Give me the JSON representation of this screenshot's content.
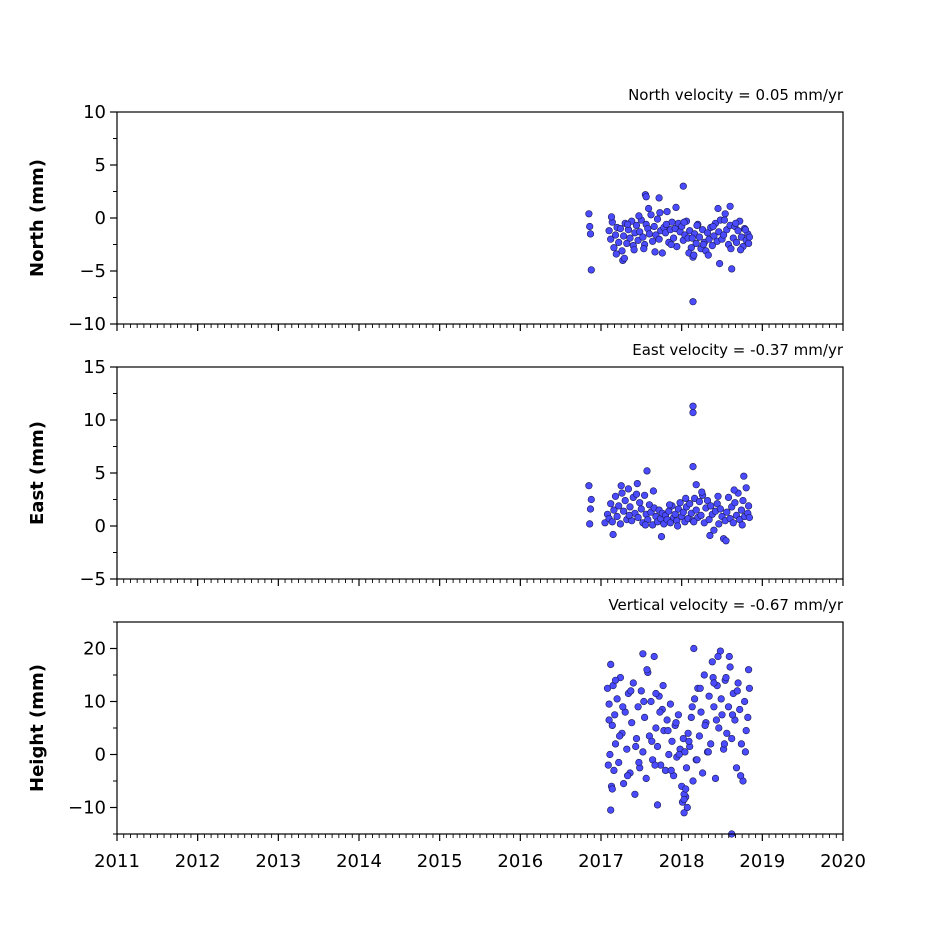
{
  "chart_data": [
    {
      "type": "scatter",
      "title": "North velocity = 0.05 mm/yr",
      "ylabel": "North (mm)",
      "xlim": [
        2011,
        2020
      ],
      "ylim": [
        -10,
        10
      ],
      "yticks": [
        10,
        5,
        0,
        -5,
        -10
      ],
      "marker_color": "#4a4aff",
      "marker_edge": "#1a1a55",
      "series": [
        {
          "x": [
            2016.85,
            2016.86,
            2016.87,
            2016.88,
            2017.1,
            2017.12,
            2017.14,
            2017.16,
            2017.18,
            2017.2,
            2017.22,
            2017.24,
            2017.26,
            2017.28,
            2017.3,
            2017.32,
            2017.34,
            2017.36,
            2017.38,
            2017.4,
            2017.42,
            2017.44,
            2017.46,
            2017.48,
            2017.5,
            2017.52,
            2017.54,
            2017.56,
            2017.58,
            2017.6,
            2017.62,
            2017.64,
            2017.66,
            2017.68,
            2017.7,
            2017.72,
            2017.74,
            2017.76,
            2017.78,
            2017.8,
            2017.82,
            2017.84,
            2017.86,
            2017.88,
            2017.9,
            2017.92,
            2017.94,
            2017.96,
            2017.98,
            2018.0,
            2018.02,
            2018.04,
            2018.06,
            2018.08,
            2018.1,
            2018.12,
            2018.14,
            2018.16,
            2018.18,
            2018.2,
            2018.22,
            2018.24,
            2018.26,
            2018.28,
            2018.3,
            2018.32,
            2018.34,
            2018.36,
            2018.38,
            2018.4,
            2018.42,
            2018.44,
            2018.46,
            2018.48,
            2018.5,
            2018.52,
            2018.54,
            2018.56,
            2018.58,
            2018.6,
            2018.62,
            2018.64,
            2018.66,
            2018.68,
            2018.7,
            2018.72,
            2018.74,
            2018.76,
            2018.78,
            2018.8,
            2018.82,
            2018.84,
            2017.13,
            2017.19,
            2017.27,
            2017.33,
            2017.41,
            2017.47,
            2017.53,
            2017.59,
            2017.67,
            2017.73,
            2017.81,
            2017.87,
            2017.93,
            2018.03,
            2018.09,
            2018.13,
            2018.19,
            2018.27,
            2018.33,
            2018.39,
            2018.47,
            2018.53,
            2018.61,
            2018.67,
            2018.73,
            2018.79,
            2018.83,
            2017.55,
            2017.56,
            2017.72,
            2018.02,
            2018.14,
            2018.45,
            2018.6,
            2018.15,
            2017.29
          ],
          "y": [
            0.4,
            -0.8,
            -1.5,
            -4.9,
            -1.2,
            -2.0,
            -0.4,
            -2.8,
            -1.6,
            -0.9,
            -2.3,
            -1.0,
            -3.1,
            -1.7,
            -0.5,
            -2.4,
            -1.1,
            -1.9,
            -0.3,
            -2.6,
            -1.4,
            -0.7,
            -2.1,
            -1.3,
            -0.2,
            -1.8,
            -2.5,
            -0.6,
            -1.0,
            -1.5,
            0.3,
            -2.2,
            -0.8,
            -1.6,
            -0.1,
            -2.0,
            -1.2,
            -3.3,
            -0.9,
            -1.4,
            0.6,
            -2.3,
            -1.1,
            -0.4,
            -1.9,
            -1.0,
            -2.7,
            -0.5,
            -1.3,
            -0.8,
            -2.1,
            -1.6,
            -0.3,
            -1.9,
            -1.2,
            -2.8,
            -3.7,
            -1.5,
            -2.4,
            -0.6,
            -1.8,
            -2.9,
            -1.1,
            -2.3,
            -3.1,
            -1.4,
            -2.0,
            -0.9,
            -2.6,
            -1.7,
            -0.5,
            -2.2,
            -1.3,
            -0.2,
            -2.0,
            -1.6,
            0.4,
            -1.1,
            -2.5,
            -0.7,
            -4.8,
            -1.9,
            -0.8,
            -2.3,
            -1.2,
            -0.3,
            -1.8,
            -2.7,
            -1.0,
            -2.1,
            -1.5,
            -1.8,
            0.1,
            -3.4,
            -4.0,
            -0.6,
            -3.0,
            0.2,
            -2.9,
            0.9,
            -3.2,
            0.5,
            -0.6,
            -2.5,
            1.0,
            -0.4,
            -3.3,
            -1.9,
            -0.7,
            -2.5,
            -3.5,
            -0.8,
            -4.3,
            -0.2,
            -2.9,
            -0.5,
            -3.0,
            -1.1,
            -2.4,
            2.2,
            2.0,
            1.9,
            3.0,
            -7.9,
            0.9,
            1.1,
            -3.5,
            -3.8
          ]
        }
      ]
    },
    {
      "type": "scatter",
      "title": "East velocity = -0.37 mm/yr",
      "ylabel": "East (mm)",
      "xlim": [
        2011,
        2020
      ],
      "ylim": [
        -5,
        15
      ],
      "yticks": [
        15,
        10,
        5,
        0,
        -5
      ],
      "marker_color": "#4a4aff",
      "marker_edge": "#1a1a55",
      "series": [
        {
          "x": [
            2016.85,
            2016.86,
            2016.87,
            2016.88,
            2017.05,
            2017.08,
            2017.1,
            2017.12,
            2017.14,
            2017.16,
            2017.18,
            2017.2,
            2017.22,
            2017.24,
            2017.26,
            2017.28,
            2017.3,
            2017.32,
            2017.34,
            2017.36,
            2017.38,
            2017.4,
            2017.42,
            2017.44,
            2017.46,
            2017.48,
            2017.5,
            2017.52,
            2017.54,
            2017.56,
            2017.58,
            2017.6,
            2017.62,
            2017.64,
            2017.66,
            2017.68,
            2017.7,
            2017.72,
            2017.74,
            2017.76,
            2017.78,
            2017.8,
            2017.82,
            2017.84,
            2017.86,
            2017.88,
            2017.9,
            2017.92,
            2017.94,
            2017.96,
            2017.98,
            2018.0,
            2018.02,
            2018.04,
            2018.06,
            2018.08,
            2018.1,
            2018.12,
            2018.14,
            2018.16,
            2018.18,
            2018.2,
            2018.22,
            2018.24,
            2018.26,
            2018.28,
            2018.3,
            2018.32,
            2018.34,
            2018.36,
            2018.38,
            2018.4,
            2018.42,
            2018.44,
            2018.46,
            2018.48,
            2018.5,
            2018.52,
            2018.54,
            2018.56,
            2018.58,
            2018.6,
            2018.62,
            2018.64,
            2018.66,
            2018.68,
            2018.7,
            2018.72,
            2018.74,
            2018.76,
            2018.78,
            2018.8,
            2018.82,
            2018.84,
            2017.15,
            2017.25,
            2017.35,
            2017.45,
            2017.55,
            2017.65,
            2017.75,
            2017.85,
            2017.95,
            2018.05,
            2018.15,
            2018.25,
            2018.35,
            2018.45,
            2018.55,
            2018.65,
            2018.75,
            2018.83,
            2017.57,
            2018.14,
            2018.14,
            2018.14,
            2018.18,
            2018.77
          ],
          "y": [
            3.8,
            0.2,
            1.6,
            2.5,
            0.3,
            1.1,
            0.7,
            2.1,
            0.4,
            1.5,
            2.8,
            0.9,
            1.9,
            0.2,
            3.1,
            1.4,
            2.4,
            0.6,
            3.5,
            1.8,
            0.5,
            2.7,
            1.2,
            3.0,
            0.8,
            2.2,
            1.6,
            0.3,
            2.9,
            1.1,
            0.6,
            2.0,
            1.3,
            0.1,
            1.7,
            0.9,
            0.4,
            1.5,
            0.7,
            1.2,
            0.2,
            1.0,
            0.6,
            1.4,
            0.3,
            1.9,
            0.8,
            1.1,
            0.5,
            1.6,
            2.2,
            0.9,
            1.3,
            0.4,
            1.8,
            0.7,
            2.1,
            1.2,
            0.5,
            2.6,
            1.5,
            0.8,
            2.3,
            1.0,
            2.9,
            0.3,
            1.7,
            2.4,
            0.6,
            1.9,
            1.1,
            -0.4,
            1.4,
            2.1,
            0.2,
            1.6,
            0.9,
            -1.2,
            0.5,
            1.3,
            2.7,
            0.7,
            1.8,
            0.3,
            2.2,
            1.0,
            3.1,
            0.6,
            1.5,
            2.4,
            0.9,
            3.6,
            1.2,
            0.8,
            -0.8,
            3.8,
            1.0,
            4.0,
            0.1,
            3.3,
            -1.0,
            2.0,
            0.0,
            2.6,
            0.4,
            3.2,
            -0.9,
            2.8,
            -1.4,
            3.4,
            0.1,
            1.9,
            5.2,
            5.6,
            11.3,
            10.7,
            3.9,
            4.7
          ]
        }
      ]
    },
    {
      "type": "scatter",
      "title": "Vertical velocity = -0.67 mm/yr",
      "ylabel": "Height (mm)",
      "xlim": [
        2011,
        2020
      ],
      "ylim": [
        -15,
        25
      ],
      "yticks": [
        20,
        10,
        0,
        -10
      ],
      "xticks": [
        2011,
        2012,
        2013,
        2014,
        2015,
        2016,
        2017,
        2018,
        2019,
        2020
      ],
      "marker_color": "#4a4aff",
      "marker_edge": "#1a1a55",
      "series": [
        {
          "x": [
            2017.08,
            2017.09,
            2017.1,
            2017.11,
            2017.12,
            2017.13,
            2017.14,
            2017.15,
            2017.16,
            2017.17,
            2017.18,
            2017.2,
            2017.22,
            2017.24,
            2017.26,
            2017.28,
            2017.3,
            2017.32,
            2017.34,
            2017.36,
            2017.38,
            2017.4,
            2017.42,
            2017.44,
            2017.46,
            2017.48,
            2017.5,
            2017.52,
            2017.54,
            2017.56,
            2017.58,
            2017.6,
            2017.62,
            2017.64,
            2017.66,
            2017.68,
            2017.7,
            2017.72,
            2017.74,
            2017.76,
            2017.78,
            2017.8,
            2017.82,
            2017.84,
            2017.86,
            2017.88,
            2017.9,
            2017.92,
            2017.94,
            2017.96,
            2017.98,
            2018.0,
            2018.01,
            2018.02,
            2018.03,
            2018.04,
            2018.05,
            2018.06,
            2018.07,
            2018.08,
            2018.1,
            2018.12,
            2018.14,
            2018.16,
            2018.18,
            2018.2,
            2018.22,
            2018.24,
            2018.26,
            2018.28,
            2018.3,
            2018.32,
            2018.34,
            2018.36,
            2018.38,
            2018.4,
            2018.42,
            2018.44,
            2018.46,
            2018.48,
            2018.5,
            2018.52,
            2018.54,
            2018.56,
            2018.58,
            2018.6,
            2018.62,
            2018.64,
            2018.66,
            2018.68,
            2018.7,
            2018.72,
            2018.74,
            2018.76,
            2018.78,
            2018.8,
            2018.82,
            2018.84,
            2017.1,
            2017.14,
            2017.18,
            2017.23,
            2017.27,
            2017.33,
            2017.37,
            2017.43,
            2017.47,
            2017.53,
            2017.57,
            2017.63,
            2017.67,
            2017.73,
            2017.77,
            2017.83,
            2017.87,
            2017.93,
            2017.97,
            2018.03,
            2018.09,
            2018.13,
            2018.19,
            2018.23,
            2018.29,
            2018.33,
            2018.39,
            2018.43,
            2018.49,
            2018.53,
            2018.59,
            2018.63,
            2018.69,
            2018.73,
            2018.79,
            2018.83,
            2017.12,
            2017.52,
            2017.7,
            2018.05,
            2018.15,
            2018.45,
            2018.55,
            2018.62,
            2017.68,
            2018.4,
            2018.03
          ],
          "y": [
            12.5,
            -2.0,
            9.5,
            0.0,
            17.0,
            -6.0,
            5.5,
            13.0,
            -3.0,
            7.5,
            2.0,
            10.5,
            -1.5,
            14.5,
            4.0,
            -5.5,
            8.0,
            1.0,
            11.5,
            -3.5,
            6.0,
            13.5,
            -7.5,
            3.0,
            9.0,
            -2.5,
            12.0,
            0.5,
            7.0,
            -4.5,
            15.5,
            3.5,
            10.0,
            -1.0,
            18.5,
            5.0,
            1.5,
            11.0,
            -2.0,
            8.5,
            4.5,
            -3.0,
            6.5,
            0.0,
            9.5,
            2.5,
            -4.0,
            5.5,
            -0.5,
            7.5,
            1.0,
            -6.0,
            -9.0,
            3.0,
            -11.0,
            0.5,
            -8.0,
            -2.5,
            -10.0,
            4.0,
            1.5,
            7.0,
            -5.0,
            10.5,
            -1.0,
            12.5,
            3.5,
            8.0,
            -3.5,
            15.0,
            6.0,
            0.5,
            11.0,
            2.0,
            17.5,
            9.0,
            -4.5,
            13.0,
            5.0,
            19.5,
            7.5,
            1.0,
            14.0,
            4.0,
            9.0,
            16.5,
            3.0,
            11.5,
            6.5,
            -2.5,
            13.5,
            8.5,
            2.0,
            -5.0,
            10.0,
            4.5,
            7.0,
            12.5,
            6.5,
            -6.5,
            14.0,
            3.5,
            9.0,
            -4.0,
            12.0,
            1.5,
            -1.5,
            10.0,
            16.0,
            2.5,
            -2.0,
            8.0,
            13.0,
            4.5,
            -3.0,
            6.0,
            0.0,
            -7.5,
            2.5,
            9.0,
            -1.0,
            12.5,
            5.5,
            0.5,
            14.5,
            6.5,
            10.5,
            2.0,
            18.5,
            7.5,
            12.0,
            -4.0,
            0.5,
            16.0,
            -10.5,
            19.0,
            -9.5,
            -6.5,
            20.0,
            18.5,
            14.5,
            -15.0,
            11.5,
            13.5,
            -8.5
          ]
        }
      ]
    }
  ]
}
